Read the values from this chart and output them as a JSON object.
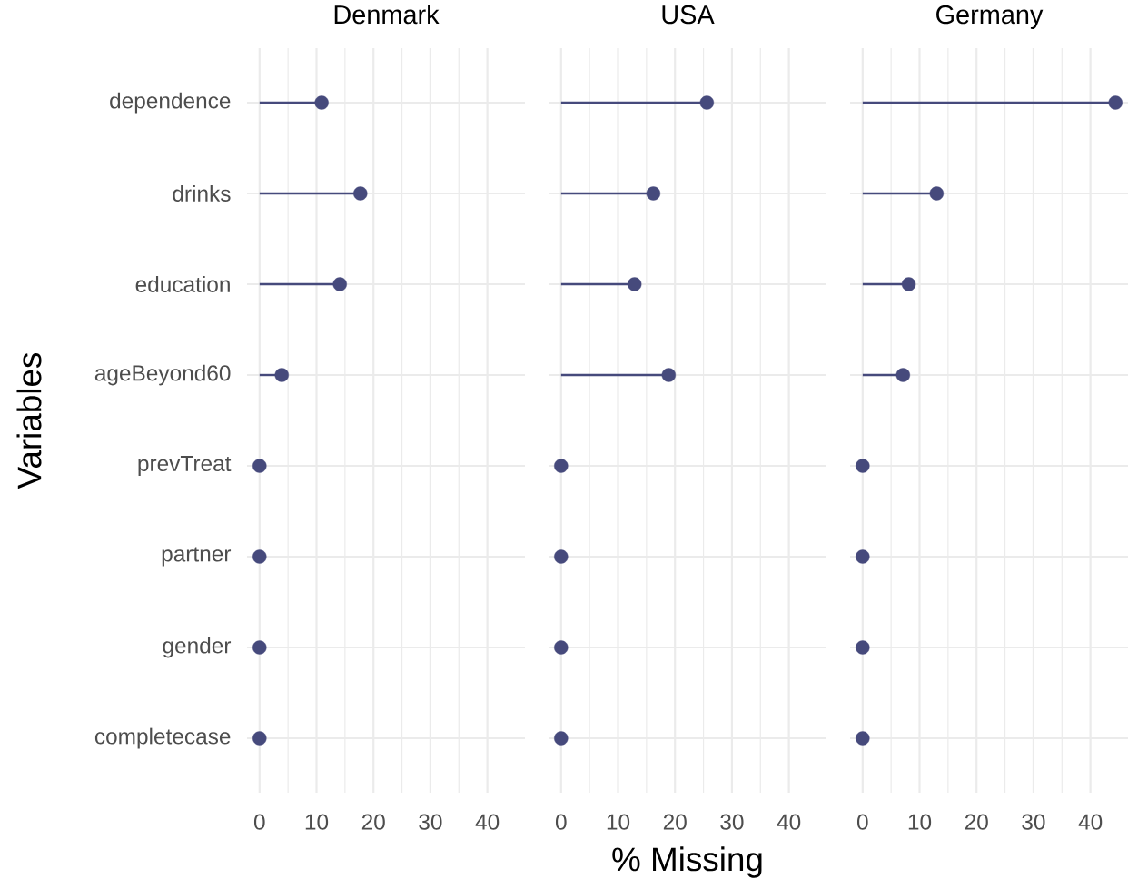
{
  "chart_data": [
    {
      "type": "lollipop",
      "orientation": "horizontal",
      "title": "Denmark",
      "ylabel": "Variables",
      "categories": [
        "dependence",
        "drinks",
        "education",
        "ageBeyond60",
        "prevTreat",
        "partner",
        "gender",
        "completecase"
      ],
      "values": [
        10.9,
        17.7,
        14.1,
        3.9,
        0,
        0,
        0,
        0
      ],
      "color": "#464a7c",
      "marker": "circle",
      "xlim": [
        -2.2,
        46.6
      ],
      "xticks": [
        0,
        10,
        20,
        30,
        40
      ],
      "grid": true
    },
    {
      "type": "lollipop",
      "orientation": "horizontal",
      "title": "USA",
      "xlabel": "% Missing",
      "categories": [
        null,
        null,
        null,
        null,
        null,
        null,
        null,
        null
      ],
      "values": [
        25.6,
        16.2,
        12.9,
        18.9,
        0,
        0,
        0,
        0
      ],
      "color": "#464a7c",
      "marker": "circle",
      "xlim": [
        -2.2,
        46.6
      ],
      "xticks": [
        0,
        10,
        20,
        30,
        40
      ],
      "grid": true,
      "tick_labels": "x"
    },
    {
      "type": "lollipop",
      "orientation": "horizontal",
      "title": "Germany",
      "categories": [
        null,
        null,
        null,
        null,
        null,
        null,
        null,
        null
      ],
      "values": [
        44.4,
        13.0,
        8.1,
        7.1,
        0,
        0,
        0,
        0
      ],
      "color": "#464a7c",
      "marker": "circle",
      "xlim": [
        -2.2,
        46.6
      ],
      "xticks": [
        0,
        10,
        20,
        30,
        40
      ],
      "grid": true,
      "tick_labels": "x"
    }
  ]
}
